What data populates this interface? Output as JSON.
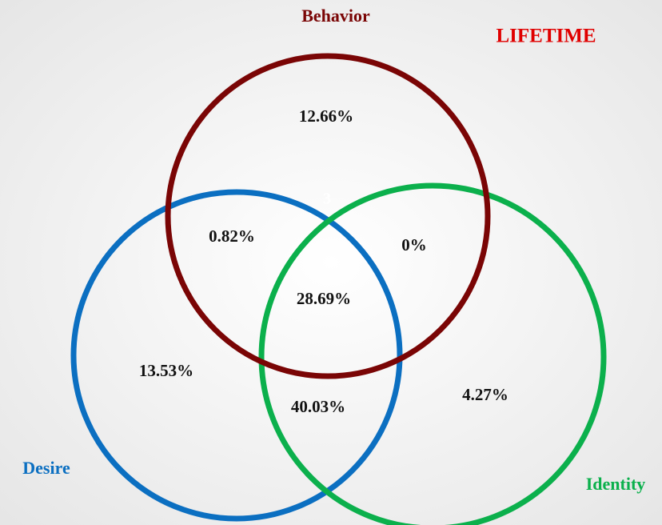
{
  "title": "LIFETIME",
  "sets": [
    {
      "name": "Behavior",
      "color": "#7a0505"
    },
    {
      "name": "Desire",
      "color": "#0b6fc1"
    },
    {
      "name": "Identity",
      "color": "#0bb04c"
    }
  ],
  "regions": [
    {
      "label": "12.66%"
    },
    {
      "label": "0.82%"
    },
    {
      "label": "0%"
    },
    {
      "label": "28.69%"
    },
    {
      "label": "13.53%"
    },
    {
      "label": "40.03%"
    },
    {
      "label": "4.27%"
    }
  ],
  "marker": "3"
}
